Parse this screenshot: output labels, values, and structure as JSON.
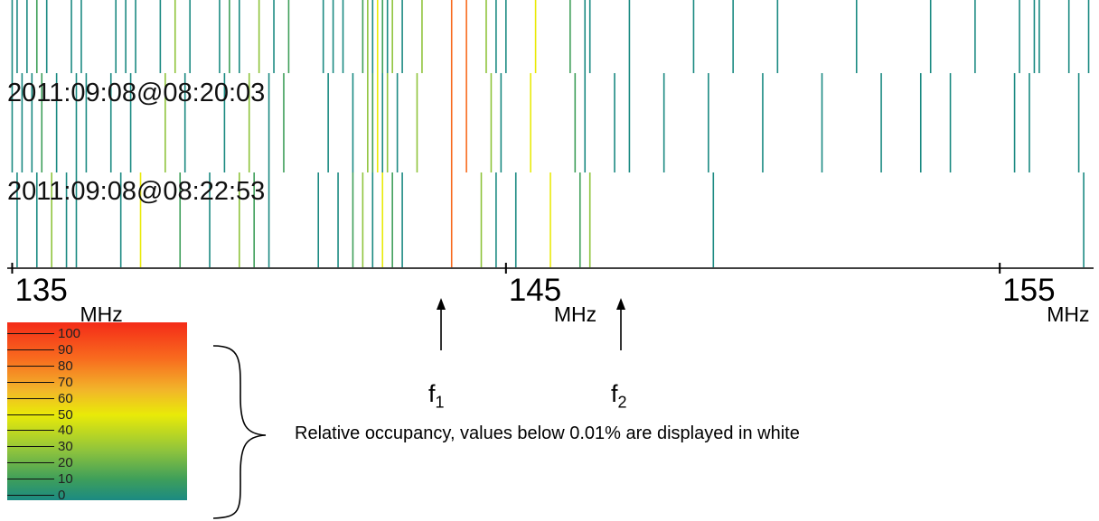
{
  "chart_data": {
    "type": "heatmap",
    "title": "",
    "xlabel": "",
    "ylabel": "",
    "x_unit": "MHz",
    "xlim": [
      134.9,
      156.9
    ],
    "x_ticks": [
      {
        "value": 135,
        "label": "135",
        "unit": "MHz"
      },
      {
        "value": 145,
        "label": "145",
        "unit": "MHz"
      },
      {
        "value": 155,
        "label": "155",
        "unit": "MHz"
      }
    ],
    "timestamps": [
      "2011:09:08@08:20:03",
      "2011:09:08@08:22:53"
    ],
    "colorbar": {
      "ticks": [
        "100",
        "90",
        "80",
        "70",
        "60",
        "50",
        "40",
        "30",
        "20",
        "10",
        "0"
      ],
      "colors": {
        "high": "#f42b18",
        "upper": "#f86a1e",
        "mid_high": "#f2b52a",
        "mid": "#e9ea08",
        "mid_low": "#8fc43c",
        "low": "#3f9f5a",
        "lowest": "#1b8a82"
      }
    },
    "rows": [
      {
        "lines": [
          [
            135.0,
            "#1b8a82"
          ],
          [
            135.1,
            "#1b8a82"
          ],
          [
            135.3,
            "#1b8a82"
          ],
          [
            135.5,
            "#3f9f5a"
          ],
          [
            135.7,
            "#1b8a82"
          ],
          [
            136.2,
            "#1b8a82"
          ],
          [
            136.4,
            "#1b8a82"
          ],
          [
            137.1,
            "#1b8a82"
          ],
          [
            137.3,
            "#1b8a82"
          ],
          [
            137.5,
            "#1b8a82"
          ],
          [
            138.0,
            "#1b8a82"
          ],
          [
            138.3,
            "#8fc43c"
          ],
          [
            138.6,
            "#1b8a82"
          ],
          [
            139.2,
            "#1b8a82"
          ],
          [
            139.4,
            "#3f9f5a"
          ],
          [
            139.6,
            "#1b8a82"
          ],
          [
            140.0,
            "#8fc43c"
          ],
          [
            140.3,
            "#1b8a82"
          ],
          [
            140.6,
            "#3f9f5a"
          ],
          [
            141.3,
            "#1b8a82"
          ],
          [
            141.5,
            "#1b8a82"
          ],
          [
            141.7,
            "#1b8a82"
          ],
          [
            142.1,
            "#3f9f5a"
          ],
          [
            142.2,
            "#8fc43c"
          ],
          [
            142.3,
            "#1b8a82"
          ],
          [
            142.4,
            "#e9ea08"
          ],
          [
            142.5,
            "#3f9f5a"
          ],
          [
            142.6,
            "#1b8a82"
          ],
          [
            142.7,
            "#8fc43c"
          ],
          [
            142.9,
            "#1b8a82"
          ],
          [
            143.3,
            "#8fc43c"
          ],
          [
            143.9,
            "#f86a1e"
          ],
          [
            144.2,
            "#f86a1e"
          ],
          [
            144.6,
            "#8fc43c"
          ],
          [
            144.8,
            "#1b8a82"
          ],
          [
            145.0,
            "#1b8a82"
          ],
          [
            145.6,
            "#e9ea08"
          ],
          [
            146.3,
            "#3f9f5a"
          ],
          [
            146.6,
            "#1b8a82"
          ],
          [
            146.7,
            "#1b8a82"
          ],
          [
            147.5,
            "#1b8a82"
          ],
          [
            148.8,
            "#1b8a82"
          ],
          [
            149.6,
            "#1b8a82"
          ],
          [
            150.5,
            "#1b8a82"
          ],
          [
            152.1,
            "#1b8a82"
          ],
          [
            153.6,
            "#1b8a82"
          ],
          [
            154.5,
            "#1b8a82"
          ],
          [
            155.4,
            "#1b8a82"
          ],
          [
            155.7,
            "#1b8a82"
          ],
          [
            155.8,
            "#1b8a82"
          ],
          [
            156.4,
            "#1b8a82"
          ],
          [
            156.8,
            "#1b8a82"
          ]
        ]
      },
      {
        "lines": [
          [
            135.0,
            "#1b8a82"
          ],
          [
            135.2,
            "#1b8a82"
          ],
          [
            135.4,
            "#1b8a82"
          ],
          [
            135.6,
            "#3f9f5a"
          ],
          [
            135.9,
            "#1b8a82"
          ],
          [
            136.3,
            "#1b8a82"
          ],
          [
            136.5,
            "#1b8a82"
          ],
          [
            137.0,
            "#1b8a82"
          ],
          [
            137.4,
            "#1b8a82"
          ],
          [
            138.1,
            "#8fc43c"
          ],
          [
            138.5,
            "#1b8a82"
          ],
          [
            139.3,
            "#1b8a82"
          ],
          [
            139.8,
            "#8fc43c"
          ],
          [
            140.2,
            "#1b8a82"
          ],
          [
            140.5,
            "#3f9f5a"
          ],
          [
            141.4,
            "#1b8a82"
          ],
          [
            141.9,
            "#1b8a82"
          ],
          [
            142.2,
            "#8fc43c"
          ],
          [
            142.3,
            "#3f9f5a"
          ],
          [
            142.4,
            "#e9ea08"
          ],
          [
            142.5,
            "#1b8a82"
          ],
          [
            142.6,
            "#8fc43c"
          ],
          [
            142.8,
            "#1b8a82"
          ],
          [
            143.2,
            "#8fc43c"
          ],
          [
            143.9,
            "#f86a1e"
          ],
          [
            144.2,
            "#f86a1e"
          ],
          [
            144.7,
            "#8fc43c"
          ],
          [
            144.9,
            "#1b8a82"
          ],
          [
            145.5,
            "#e9ea08"
          ],
          [
            146.4,
            "#3f9f5a"
          ],
          [
            146.6,
            "#1b8a82"
          ],
          [
            147.2,
            "#1b8a82"
          ],
          [
            147.5,
            "#1b8a82"
          ],
          [
            148.2,
            "#1b8a82"
          ],
          [
            149.1,
            "#1b8a82"
          ],
          [
            150.2,
            "#1b8a82"
          ],
          [
            151.4,
            "#1b8a82"
          ],
          [
            152.6,
            "#1b8a82"
          ],
          [
            153.4,
            "#1b8a82"
          ],
          [
            154.0,
            "#1b8a82"
          ],
          [
            155.3,
            "#1b8a82"
          ],
          [
            155.6,
            "#1b8a82"
          ],
          [
            156.6,
            "#1b8a82"
          ]
        ]
      },
      {
        "lines": [
          [
            135.1,
            "#1b8a82"
          ],
          [
            135.5,
            "#1b8a82"
          ],
          [
            135.8,
            "#8fc43c"
          ],
          [
            136.1,
            "#1b8a82"
          ],
          [
            136.3,
            "#1b8a82"
          ],
          [
            137.2,
            "#1b8a82"
          ],
          [
            137.6,
            "#e9ea08"
          ],
          [
            138.4,
            "#3f9f5a"
          ],
          [
            139.0,
            "#1b8a82"
          ],
          [
            139.6,
            "#8fc43c"
          ],
          [
            139.9,
            "#3f9f5a"
          ],
          [
            140.2,
            "#1b8a82"
          ],
          [
            141.2,
            "#1b8a82"
          ],
          [
            141.6,
            "#1b8a82"
          ],
          [
            141.9,
            "#3f9f5a"
          ],
          [
            142.1,
            "#8fc43c"
          ],
          [
            142.3,
            "#1b8a82"
          ],
          [
            142.5,
            "#e9ea08"
          ],
          [
            142.7,
            "#3f9f5a"
          ],
          [
            142.9,
            "#1b8a82"
          ],
          [
            143.9,
            "#f86a1e"
          ],
          [
            144.5,
            "#8fc43c"
          ],
          [
            144.8,
            "#1b8a82"
          ],
          [
            145.2,
            "#1b8a82"
          ],
          [
            145.9,
            "#e9ea08"
          ],
          [
            146.5,
            "#3f9f5a"
          ],
          [
            146.7,
            "#8fc43c"
          ],
          [
            149.2,
            "#1b8a82"
          ],
          [
            156.7,
            "#1b8a82"
          ]
        ]
      }
    ]
  },
  "annotations": {
    "f1": {
      "symbol": "f",
      "sub": "1",
      "value": 144.1
    },
    "f2": {
      "symbol": "f",
      "sub": "2",
      "value": 146.6
    }
  },
  "caption": "Relative occupancy, values below 0.01% are displayed in white"
}
